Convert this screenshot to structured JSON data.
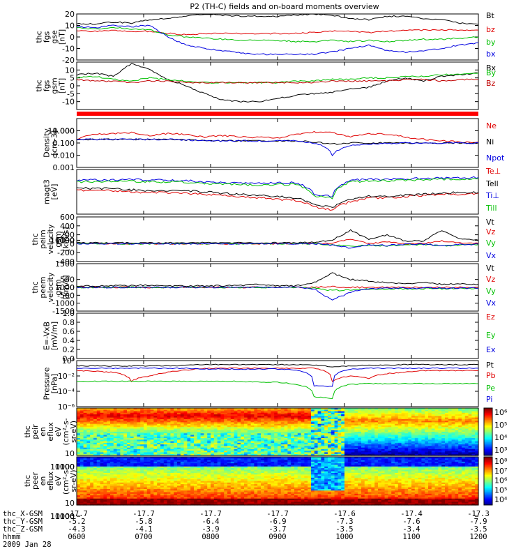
{
  "chart_data": {
    "type": "line",
    "title": "P2 (TH-C) fields and on-board moments overview",
    "time_ticks": [
      "0600",
      "0700",
      "0800",
      "0900",
      "1000",
      "1100",
      "1200"
    ],
    "panels": [
      {
        "id": "fgs-gse",
        "ylabel": [
          "thc",
          "fgs",
          "gse",
          "[nT]"
        ],
        "ylim": [
          -20,
          20
        ],
        "yticks": [
          "20",
          "10",
          "0",
          "-10",
          "-20"
        ],
        "series": [
          {
            "name": "Bt",
            "color": "#000000",
            "values": [
              12,
              11,
              13,
              12,
              15,
              16,
              18,
              20,
              19,
              18,
              18,
              18,
              19,
              20,
              19,
              16,
              15,
              18,
              18,
              16,
              15,
              12,
              11
            ]
          },
          {
            "name": "bz",
            "color": "#e00000",
            "values": [
              5,
              5,
              6,
              5,
              5,
              3,
              2,
              3,
              3,
              3,
              3,
              3,
              3,
              4,
              5,
              5,
              4,
              5,
              6,
              6,
              6,
              6,
              6
            ]
          },
          {
            "name": "by",
            "color": "#00c000",
            "values": [
              8,
              7,
              8,
              7,
              6,
              2,
              0,
              -1,
              -2,
              -3,
              -3,
              -3,
              -4,
              -4,
              -3,
              -4,
              -3,
              -4,
              -3,
              -2,
              -2,
              -1,
              0
            ]
          },
          {
            "name": "bx",
            "color": "#0000e0",
            "values": [
              9,
              8,
              10,
              9,
              10,
              0,
              -7,
              -10,
              -12,
              -14,
              -15,
              -15,
              -15,
              -15,
              -13,
              -10,
              -7,
              -12,
              -13,
              -12,
              -10,
              -7,
              -5
            ]
          }
        ]
      },
      {
        "id": "fgs-gsm",
        "ylabel": [
          "thc",
          "fgs",
          "gsm",
          "[nT]"
        ],
        "ylim": [
          -15,
          15
        ],
        "yticks": [
          "10",
          "5",
          "0",
          "-5",
          "-10"
        ],
        "series": [
          {
            "name": "Bx",
            "color": "#000000",
            "values": [
              7,
              8,
              6,
              14,
              10,
              4,
              0,
              -5,
              -9,
              -10,
              -10,
              -8,
              -6,
              -5,
              -4,
              -2,
              -1,
              3,
              5,
              3,
              6,
              7,
              8
            ]
          },
          {
            "name": "By",
            "color": "#00c000",
            "values": [
              5,
              6,
              4,
              3,
              5,
              4,
              3,
              2,
              2,
              2,
              2,
              2,
              3,
              3,
              4,
              4,
              5,
              5,
              6,
              6,
              7,
              7,
              8
            ]
          },
          {
            "name": "Bz",
            "color": "#c00000",
            "values": [
              4,
              3,
              3,
              2,
              3,
              3,
              2,
              2,
              2,
              2,
              2,
              2,
              2,
              2,
              3,
              3,
              3,
              3,
              4,
              4,
              3,
              4,
              4
            ]
          }
        ]
      },
      {
        "id": "density",
        "ylabel": [
          "Density",
          "[cm-3]"
        ],
        "yscale": "log",
        "ylim": [
          0.001,
          10
        ],
        "yticks": [
          "10.000",
          "1.000",
          "0.100",
          "0.010",
          "0.001"
        ],
        "series": [
          {
            "name": "Ne",
            "color": "#e00000",
            "values": [
              0.2,
              0.5,
              0.6,
              0.7,
              0.4,
              0.6,
              0.5,
              0.3,
              0.4,
              0.3,
              0.3,
              0.25,
              0.5,
              0.8,
              0.7,
              0.3,
              0.6,
              0.5,
              0.3,
              0.2,
              0.15,
              0.12,
              0.12
            ]
          },
          {
            "name": "Ni",
            "color": "#000000",
            "values": [
              0.2,
              0.2,
              0.2,
              0.2,
              0.2,
              0.2,
              0.18,
              0.15,
              0.15,
              0.15,
              0.15,
              0.15,
              0.15,
              0.12,
              0.08,
              0.1,
              0.1,
              0.1,
              0.1,
              0.1,
              0.1,
              0.1,
              0.1
            ]
          },
          {
            "name": "Npot",
            "color": "#0000e0",
            "values": [
              0.2,
              0.2,
              0.2,
              0.2,
              0.2,
              0.2,
              0.18,
              0.15,
              0.15,
              0.15,
              0.15,
              0.15,
              0.15,
              0.1,
              0.01,
              0.06,
              0.08,
              0.09,
              0.1,
              0.1,
              0.1,
              0.1,
              0.1
            ]
          }
        ]
      },
      {
        "id": "temperature",
        "ylabel": [
          "magt3",
          "[eV]"
        ],
        "yscale": "log",
        "ylim": [
          30,
          10000
        ],
        "yticks": [
          "10000",
          "1000",
          "100"
        ],
        "series": [
          {
            "name": "Te⊥",
            "color": "#e00000",
            "values": [
              700,
              650,
              650,
              550,
              500,
              500,
              450,
              400,
              350,
              300,
              250,
              200,
              180,
              80,
              50,
              150,
              250,
              250,
              300,
              350,
              400,
              400,
              450
            ]
          },
          {
            "name": "Tell",
            "color": "#000000",
            "values": [
              900,
              850,
              850,
              700,
              650,
              650,
              600,
              550,
              450,
              400,
              350,
              300,
              250,
              100,
              70,
              200,
              300,
              300,
              350,
              400,
              450,
              500,
              500
            ]
          },
          {
            "name": "Ti⊥",
            "color": "#0000e0",
            "values": [
              2500,
              2600,
              2600,
              2700,
              2500,
              2500,
              2400,
              2000,
              1800,
              1700,
              1600,
              1700,
              1800,
              400,
              300,
              2500,
              2800,
              2800,
              3000,
              3200,
              3300,
              3400,
              3500
            ]
          },
          {
            "name": "Till",
            "color": "#00c000",
            "values": [
              2000,
              2100,
              2100,
              2200,
              2000,
              2000,
              1900,
              1600,
              1500,
              1400,
              1300,
              1400,
              1500,
              300,
              250,
              2000,
              2300,
              2300,
              2500,
              2700,
              2800,
              2900,
              3000
            ]
          }
        ]
      },
      {
        "id": "peim-velocity",
        "ylabel": [
          "thc",
          "peim",
          "velocity",
          "gsm",
          "[km/s]"
        ],
        "ylim": [
          -400,
          600
        ],
        "yticks": [
          "600",
          "400",
          "200",
          "0",
          "-200",
          "-400"
        ],
        "series": [
          {
            "name": "Vt",
            "color": "#000000",
            "values": [
              20,
              20,
              20,
              20,
              20,
              20,
              20,
              20,
              20,
              20,
              20,
              20,
              20,
              30,
              80,
              300,
              100,
              200,
              60,
              60,
              300,
              100,
              80
            ]
          },
          {
            "name": "Vz",
            "color": "#e00000",
            "values": [
              0,
              0,
              0,
              0,
              0,
              0,
              0,
              0,
              0,
              0,
              0,
              0,
              0,
              0,
              20,
              100,
              0,
              50,
              0,
              0,
              60,
              20,
              10
            ]
          },
          {
            "name": "Vy",
            "color": "#00c000",
            "values": [
              0,
              0,
              0,
              0,
              0,
              0,
              0,
              0,
              0,
              0,
              0,
              0,
              0,
              0,
              -20,
              -60,
              -30,
              -50,
              -20,
              -20,
              -50,
              -30,
              -20
            ]
          },
          {
            "name": "Vx",
            "color": "#0000e0",
            "values": [
              0,
              0,
              0,
              0,
              0,
              0,
              0,
              0,
              0,
              0,
              0,
              0,
              0,
              0,
              -30,
              -100,
              -20,
              -40,
              -10,
              -10,
              -40,
              -20,
              -10
            ]
          }
        ]
      },
      {
        "id": "peem-velocity",
        "ylabel": [
          "thc",
          "peem",
          "velocity",
          "gsm",
          "[km/s]"
        ],
        "ylim": [
          -1500,
          1500
        ],
        "yticks": [
          "1500",
          "1000",
          "500",
          "0",
          "-500",
          "-1000",
          "-1500"
        ],
        "series": [
          {
            "name": "Vt",
            "color": "#000000",
            "values": [
              100,
              100,
              100,
              120,
              150,
              100,
              100,
              100,
              100,
              120,
              200,
              100,
              100,
              300,
              900,
              500,
              400,
              300,
              250,
              300,
              200,
              200,
              200
            ]
          },
          {
            "name": "Vz",
            "color": "#e00000",
            "values": [
              0,
              0,
              0,
              0,
              0,
              0,
              0,
              0,
              0,
              0,
              0,
              0,
              0,
              0,
              50,
              0,
              0,
              0,
              0,
              0,
              0,
              0,
              0
            ]
          },
          {
            "name": "Vy",
            "color": "#00c000",
            "values": [
              0,
              0,
              0,
              0,
              0,
              0,
              0,
              0,
              0,
              0,
              0,
              0,
              0,
              -50,
              -200,
              -150,
              -100,
              -100,
              -80,
              -80,
              -80,
              -60,
              -60
            ]
          },
          {
            "name": "Vx",
            "color": "#0000e0",
            "values": [
              0,
              0,
              0,
              0,
              0,
              0,
              0,
              0,
              0,
              0,
              0,
              0,
              0,
              -100,
              -800,
              -300,
              -100,
              -50,
              -50,
              -50,
              -50,
              -50,
              -50
            ]
          }
        ]
      },
      {
        "id": "efield",
        "ylabel": [
          "E=-VxB",
          "[mV/m]"
        ],
        "ylim": [
          0,
          1
        ],
        "yticks": [
          "1.0",
          "0.8",
          "0.6",
          "0.4",
          "0.2",
          "0.0"
        ],
        "series": [
          {
            "name": "Ez",
            "color": "#e00000",
            "values": []
          },
          {
            "name": "Ey",
            "color": "#00c000",
            "values": []
          },
          {
            "name": "Ex",
            "color": "#0000e0",
            "values": []
          }
        ]
      },
      {
        "id": "pressure",
        "ylabel": [
          "Pressure",
          "[nPa]"
        ],
        "yscale": "log",
        "ylim": [
          1e-06,
          1
        ],
        "yticks": [
          "10⁰",
          "10⁻²",
          "10⁻⁴",
          "10⁻⁶"
        ],
        "series": [
          {
            "name": "Pt",
            "color": "#000000",
            "values": [
              0.2,
              0.2,
              0.2,
              0.2,
              0.2,
              0.2,
              0.25,
              0.3,
              0.3,
              0.3,
              0.3,
              0.3,
              0.3,
              0.25,
              0.15,
              0.2,
              0.25,
              0.25,
              0.3,
              0.3,
              0.3,
              0.3,
              0.3
            ]
          },
          {
            "name": "Pb",
            "color": "#e00000",
            "values": [
              0.05,
              0.04,
              0.03,
              0.002,
              0.01,
              0.03,
              0.06,
              0.1,
              0.1,
              0.1,
              0.1,
              0.1,
              0.1,
              0.1,
              0.002,
              0.01,
              0.005,
              0.02,
              0.03,
              0.05,
              0.05,
              0.05,
              0.05
            ]
          },
          {
            "name": "Pe",
            "color": "#00c000",
            "values": [
              0.002,
              0.002,
              0.002,
              0.002,
              0.002,
              0.002,
              0.002,
              0.002,
              0.002,
              0.002,
              0.0015,
              0.0015,
              0.0008,
              2e-05,
              1e-05,
              0.0008,
              0.001,
              0.001,
              0.001,
              0.001,
              0.001,
              0.001,
              0.001
            ]
          },
          {
            "name": "Pi",
            "color": "#0000e0",
            "values": [
              0.1,
              0.1,
              0.1,
              0.1,
              0.1,
              0.1,
              0.1,
              0.08,
              0.08,
              0.08,
              0.08,
              0.08,
              0.06,
              0.0005,
              0.0004,
              0.08,
              0.1,
              0.1,
              0.1,
              0.1,
              0.1,
              0.1,
              0.1
            ]
          }
        ]
      },
      {
        "id": "peir-spectrogram",
        "type": "heatmap",
        "ylabel": [
          "thc",
          "peir",
          "en",
          "eflux",
          "eV",
          "(cm²-s-",
          "sr-eV)"
        ],
        "yscale": "log",
        "ylim": [
          7,
          30000
        ],
        "yticks": [
          "10000",
          "1000",
          "100",
          "10"
        ],
        "colorbar_ticks": [
          "10⁶",
          "10⁵",
          "10⁴",
          "10³"
        ]
      },
      {
        "id": "peer-spectrogram",
        "type": "heatmap",
        "ylabel": [
          "thc",
          "peer",
          "en",
          "eflux",
          "eV",
          "(cm²-s-",
          "sr-eV)"
        ],
        "yscale": "log",
        "ylim": [
          7,
          30000
        ],
        "yticks": [
          "10000",
          "1000",
          "100",
          "10"
        ],
        "colorbar_ticks": [
          "10⁸",
          "10⁷",
          "10⁶",
          "10⁵",
          "10⁴"
        ]
      }
    ],
    "ephemeris": [
      {
        "label": "thc_X-GSM",
        "values": [
          "-17.7",
          "-17.7",
          "-17.7",
          "-17.7",
          "-17.6",
          "-17.4",
          "-17.3"
        ]
      },
      {
        "label": "thc_Y-GSM",
        "values": [
          "-5.2",
          "-5.8",
          "-6.4",
          "-6.9",
          "-7.3",
          "-7.6",
          "-7.9"
        ]
      },
      {
        "label": "thc_Z-GSM",
        "values": [
          "-4.3",
          "-4.1",
          "-3.9",
          "-3.7",
          "-3.5",
          "-3.4",
          "-3.5"
        ]
      },
      {
        "label": "hhmm",
        "values": [
          "0600",
          "0700",
          "0800",
          "0900",
          "1000",
          "1100",
          "1200"
        ]
      }
    ],
    "date": "2009 Jan 28"
  }
}
